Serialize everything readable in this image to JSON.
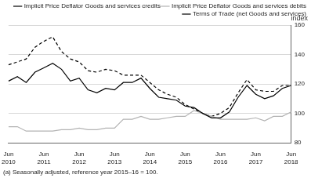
{
  "chart_data": {
    "type": "line",
    "y_label": "index",
    "footnote": "(a) Seasonally adjusted, reference year 2015–16 = 100.",
    "categories": [
      "Jun 2010",
      null,
      null,
      null,
      "Jun 2011",
      null,
      null,
      null,
      "Jun 2012",
      null,
      null,
      null,
      "Jun 2013",
      null,
      null,
      null,
      "Jun 2014",
      null,
      null,
      null,
      "Jun 2015",
      null,
      null,
      null,
      "Jun 2016",
      null,
      null,
      null,
      "Jun 2017",
      null,
      null,
      null,
      "Jun 2018"
    ],
    "series": [
      {
        "name": "Implicit Price Deflator Goods and services credits",
        "color": "#000000",
        "line_style": "solid",
        "values": [
          122,
          125,
          121,
          128,
          131,
          134,
          130,
          122,
          124,
          116,
          114,
          117,
          116,
          121,
          121,
          124,
          117,
          111,
          110,
          109,
          105,
          104,
          100,
          97,
          97,
          101,
          111,
          119,
          113,
          110,
          112,
          117,
          119
        ]
      },
      {
        "name": "Implicit Price Deflator Goods and services debits",
        "color": "#b3b3b3",
        "line_style": "solid",
        "values": [
          91,
          91,
          88,
          88,
          88,
          88,
          89,
          89,
          90,
          89,
          89,
          90,
          90,
          96,
          96,
          98,
          96,
          96,
          97,
          98,
          98,
          102,
          100,
          98,
          96,
          96,
          96,
          96,
          97,
          95,
          98,
          98,
          101
        ]
      },
      {
        "name": "Terms of Trade (net Goods and services)",
        "color": "#000000",
        "line_style": "dashed",
        "values": [
          133,
          135,
          137,
          145,
          149,
          152,
          142,
          137,
          135,
          129,
          128,
          130,
          129,
          126,
          126,
          126,
          121,
          116,
          113,
          111,
          106,
          103,
          100,
          98,
          100,
          104,
          114,
          123,
          116,
          115,
          115,
          119,
          119
        ]
      }
    ],
    "ylim": [
      80,
      160
    ],
    "yticks": [
      80,
      100,
      120,
      140,
      160
    ],
    "grid": true,
    "legend": "top right"
  }
}
